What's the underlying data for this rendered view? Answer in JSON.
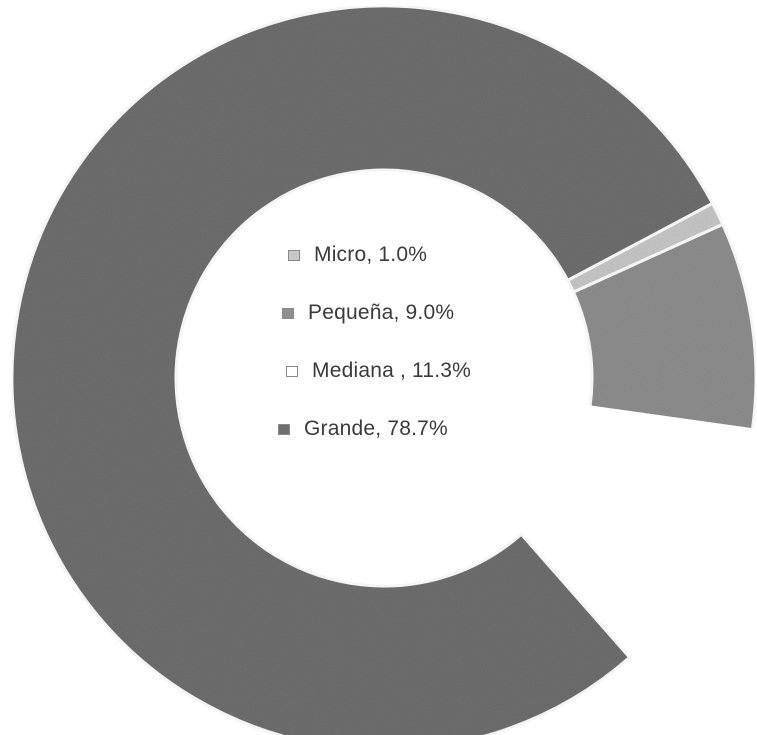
{
  "chart_data": {
    "type": "pie",
    "variant": "donut",
    "title": "",
    "categories": [
      "Micro",
      "Pequeña",
      "Mediana",
      "Grande"
    ],
    "values": [
      1.0,
      9.0,
      11.3,
      78.7
    ],
    "unit": "%",
    "labels": [
      "Micro, 1.0%",
      "Pequeña, 9.0%",
      "Mediana , 11.3%",
      "Grande, 78.7%"
    ],
    "colors": [
      "#c8c8c8",
      "#8f8f8f",
      "#ffffff",
      "#6f6f6f"
    ],
    "legend_position": "center",
    "start_angle_deg": 62,
    "direction": "clockwise"
  }
}
